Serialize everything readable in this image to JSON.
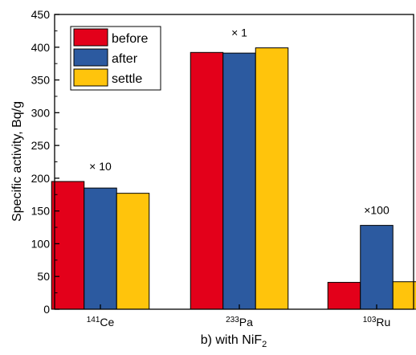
{
  "chart_data": {
    "type": "bar",
    "categories": [
      {
        "sup": "141",
        "base": "Ce"
      },
      {
        "sup": "233",
        "base": "Pa"
      },
      {
        "sup": "103",
        "base": "Ru"
      }
    ],
    "series": [
      {
        "name": "before",
        "color": "#e3001a",
        "values": [
          195,
          392,
          41
        ]
      },
      {
        "name": "after",
        "color": "#2c5aa0",
        "values": [
          185,
          391,
          128
        ]
      },
      {
        "name": "settle",
        "color": "#ffc40c",
        "values": [
          177,
          399,
          42
        ]
      }
    ],
    "annotations": [
      "× 10",
      "× 1",
      "×100"
    ],
    "ylabel": "Specific activity, Bq/g",
    "xlabel": {
      "prefix": "b) with NiF",
      "sub": "2"
    },
    "ylim": [
      0,
      450
    ],
    "yticks": [
      0,
      50,
      100,
      150,
      200,
      250,
      300,
      350,
      400,
      450
    ],
    "legend_placement": "top-left",
    "grid": false
  }
}
